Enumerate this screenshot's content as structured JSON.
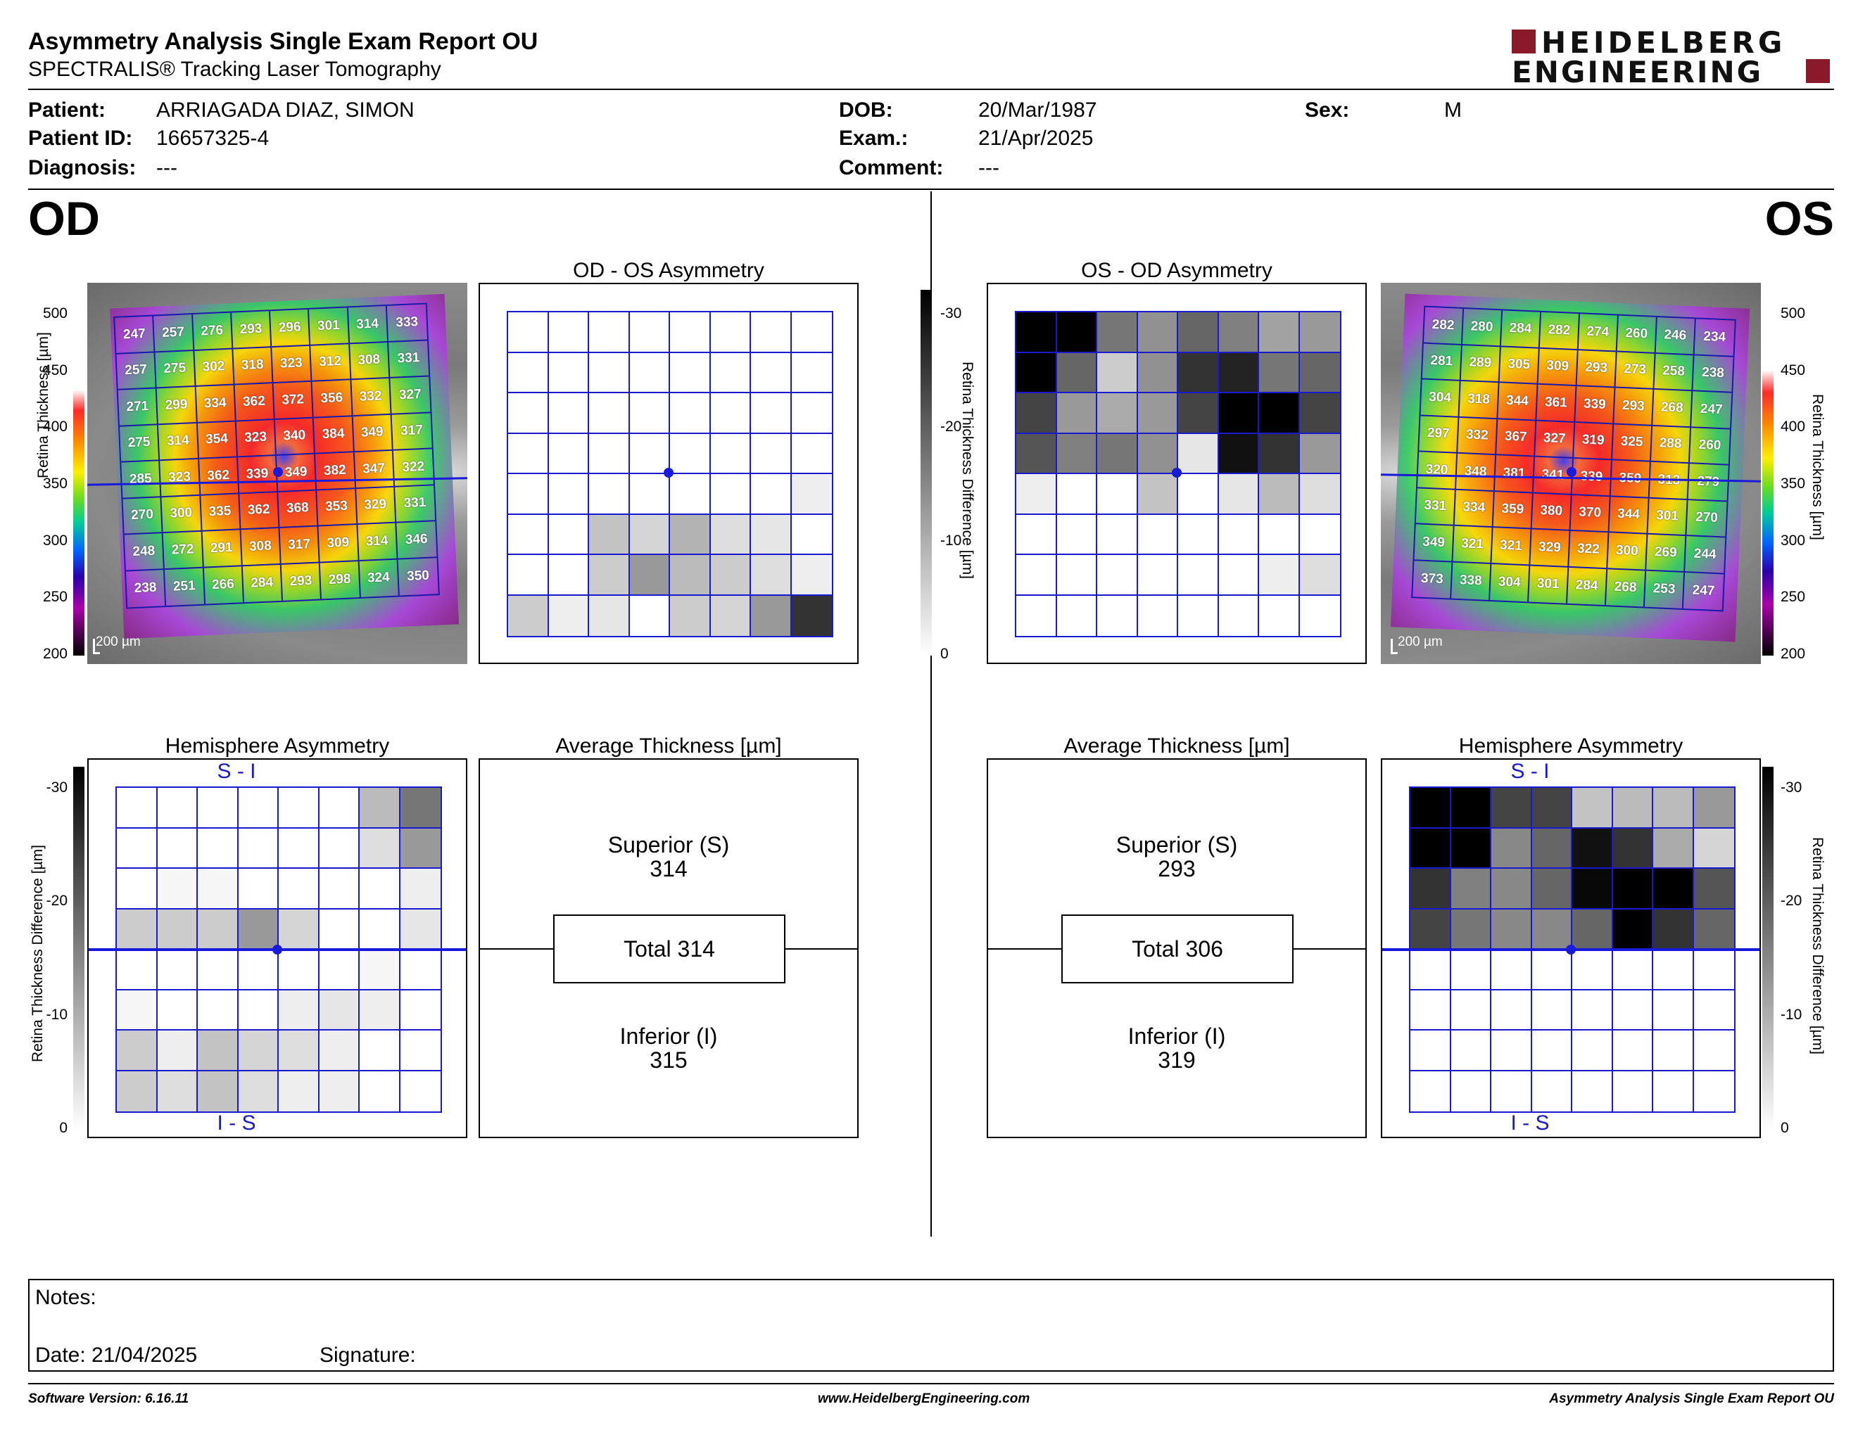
{
  "header": {
    "title": "Asymmetry Analysis Single Exam Report OU",
    "subtitle": "SPECTRALIS® Tracking Laser Tomography",
    "logo_line1": "HEIDELBERG",
    "logo_line2": "ENGINEERING"
  },
  "patient": {
    "patient_label": "Patient:",
    "patient_value": "ARRIAGADA DIAZ, SIMON",
    "id_label": "Patient ID:",
    "id_value": "16657325-4",
    "diagnosis_label": "Diagnosis:",
    "diagnosis_value": "---",
    "dob_label": "DOB:",
    "dob_value": "20/Mar/1987",
    "exam_label": "Exam.:",
    "exam_value": "21/Apr/2025",
    "comment_label": "Comment:",
    "comment_value": "---",
    "sex_label": "Sex:",
    "sex_value": "M"
  },
  "eyes": {
    "od": "OD",
    "os": "OS"
  },
  "scales": {
    "thickness_ticks": [
      "500",
      "450",
      "400",
      "350",
      "300",
      "250",
      "200"
    ],
    "thickness_label": "Retina Thickness [µm]",
    "diff_ticks": [
      "-30",
      "-20",
      "-10",
      "0"
    ],
    "diff_label": "Retina Thickness Difference [µm]",
    "scale_bar": "200 µm"
  },
  "od": {
    "thickness": [
      [
        247,
        257,
        276,
        293,
        296,
        301,
        314,
        333
      ],
      [
        257,
        275,
        302,
        318,
        323,
        312,
        308,
        331
      ],
      [
        271,
        299,
        334,
        362,
        372,
        356,
        332,
        327
      ],
      [
        275,
        314,
        354,
        323,
        340,
        384,
        349,
        317
      ],
      [
        285,
        323,
        362,
        339,
        349,
        382,
        347,
        322
      ],
      [
        270,
        300,
        335,
        362,
        368,
        353,
        329,
        331
      ],
      [
        248,
        272,
        291,
        308,
        317,
        309,
        314,
        346
      ],
      [
        238,
        251,
        266,
        284,
        293,
        298,
        324,
        350
      ]
    ],
    "asym_title": "OD - OS Asymmetry",
    "asymmetry": [
      [
        0,
        0,
        0,
        0,
        0,
        0,
        0,
        0
      ],
      [
        0,
        0,
        0,
        0,
        0,
        0,
        0,
        0
      ],
      [
        0,
        0,
        0,
        0,
        0,
        0,
        0,
        0
      ],
      [
        0,
        0,
        0,
        0,
        0,
        0,
        0,
        0
      ],
      [
        0,
        0,
        0,
        0,
        0,
        0,
        0,
        2
      ],
      [
        0,
        0,
        7,
        5,
        9,
        4,
        3,
        0
      ],
      [
        0,
        0,
        6,
        12,
        8,
        6,
        4,
        2
      ],
      [
        6,
        2,
        3,
        0,
        6,
        5,
        12,
        24
      ]
    ],
    "hemi_title": "Hemisphere Asymmetry",
    "hemi_top": "S - I",
    "hemi_bottom": "I - S",
    "hemisphere": [
      [
        0,
        0,
        0,
        0,
        0,
        0,
        8,
        16
      ],
      [
        0,
        0,
        0,
        0,
        0,
        0,
        4,
        12
      ],
      [
        0,
        1,
        1,
        0,
        0,
        0,
        0,
        2
      ],
      [
        6,
        6,
        6,
        12,
        5,
        0,
        0,
        3
      ],
      [
        0,
        0,
        0,
        0,
        0,
        0,
        1,
        0
      ],
      [
        1,
        0,
        0,
        0,
        2,
        3,
        2,
        0
      ],
      [
        6,
        2,
        7,
        5,
        4,
        2,
        0,
        0
      ],
      [
        6,
        4,
        7,
        4,
        2,
        2,
        0,
        0
      ]
    ],
    "avg_title": "Average Thickness [µm]",
    "superior_label": "Superior (S)",
    "superior_value": "314",
    "total_label": "Total 314",
    "inferior_label": "Inferior (I)",
    "inferior_value": "315"
  },
  "os": {
    "thickness": [
      [
        282,
        280,
        284,
        282,
        274,
        260,
        246,
        234
      ],
      [
        281,
        289,
        305,
        309,
        293,
        273,
        258,
        238
      ],
      [
        304,
        318,
        344,
        361,
        339,
        293,
        268,
        247
      ],
      [
        297,
        332,
        367,
        327,
        319,
        325,
        288,
        260
      ],
      [
        320,
        348,
        381,
        341,
        339,
        359,
        313,
        279
      ],
      [
        331,
        334,
        359,
        380,
        370,
        344,
        301,
        270
      ],
      [
        349,
        321,
        321,
        329,
        322,
        300,
        269,
        244
      ],
      [
        373,
        338,
        304,
        301,
        284,
        268,
        253,
        247
      ]
    ],
    "asym_title": "OS - OD Asymmetry",
    "asymmetry": [
      [
        -30,
        -30,
        -16,
        -13,
        -18,
        -15,
        -11,
        -12
      ],
      [
        -30,
        -18,
        -6,
        -13,
        -24,
        -26,
        -16,
        -18
      ],
      [
        -22,
        -12,
        -10,
        -12,
        -22,
        -30,
        -30,
        -22
      ],
      [
        -20,
        -15,
        -16,
        -13,
        -3,
        -28,
        -24,
        -12
      ],
      [
        -2,
        0,
        0,
        -7,
        0,
        -3,
        -8,
        -4
      ],
      [
        0,
        0,
        0,
        0,
        0,
        0,
        0,
        0
      ],
      [
        0,
        0,
        0,
        0,
        0,
        0,
        -2,
        -4
      ],
      [
        0,
        0,
        0,
        0,
        0,
        0,
        0,
        0
      ]
    ],
    "hemisphere": [
      [
        -30,
        -30,
        -22,
        -22,
        -7,
        -8,
        -8,
        -12
      ],
      [
        -30,
        -30,
        -14,
        -18,
        -28,
        -24,
        -10,
        -5
      ],
      [
        -24,
        -15,
        -14,
        -18,
        -29,
        -30,
        -30,
        -20
      ],
      [
        -22,
        -16,
        -14,
        -14,
        -18,
        -30,
        -24,
        -18
      ],
      [
        0,
        0,
        0,
        0,
        0,
        0,
        0,
        0
      ],
      [
        0,
        0,
        0,
        0,
        0,
        0,
        0,
        0
      ],
      [
        0,
        0,
        0,
        0,
        0,
        0,
        0,
        0
      ],
      [
        0,
        0,
        0,
        0,
        0,
        0,
        0,
        0
      ]
    ],
    "superior_label": "Superior (S)",
    "superior_value": "293",
    "total_label": "Total 306",
    "inferior_label": "Inferior (I)",
    "inferior_value": "319"
  },
  "notes": {
    "notes_label": "Notes:",
    "date_label": "Date: 21/04/2025",
    "signature_label": "Signature:"
  },
  "footer": {
    "version": "Software Version: 6.16.11",
    "website": "www.HeidelbergEngineering.com",
    "report": "Asymmetry Analysis Single Exam Report OU"
  },
  "colors": {
    "grid_blue": "#1a1acc",
    "logo_red": "#8a1a2a",
    "fovea_blue": "#1a1add"
  }
}
